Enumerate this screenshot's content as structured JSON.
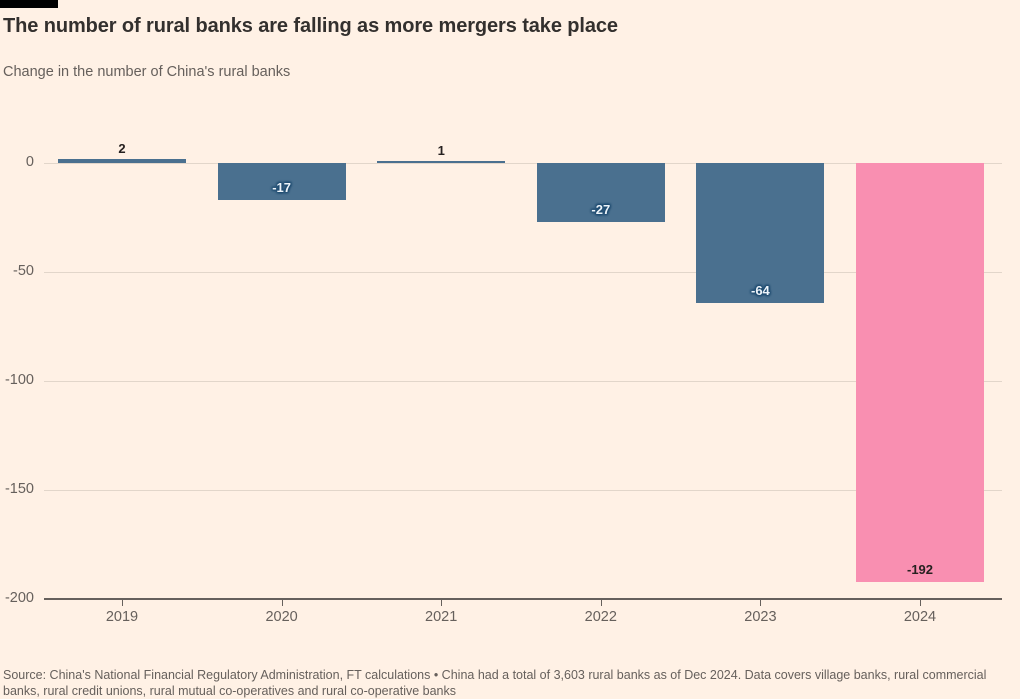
{
  "header": {
    "title": "The number of rural banks are falling as more mergers take place",
    "subtitle": "Change in the number of China's rural banks"
  },
  "footer": {
    "source": "Source: China's National Financial Regulatory Administration, FT calculations • China had a total of 3,603 rural banks as of Dec 2024. Data covers village banks, rural commercial banks, rural credit unions, rural mutual co-operatives and rural co-operative banks"
  },
  "colors": {
    "background": "#FFF1E5",
    "brand_bar": "#000000",
    "bar_default": "#4A708F",
    "bar_highlight": "#F98FB1",
    "gridline": "#E2D6CA",
    "axis": "#66605C",
    "title_text": "#33302E",
    "muted_text": "#66605C",
    "label_on_blue": "#EDF4FA",
    "label_on_pink": "#262120"
  },
  "chart_data": {
    "type": "bar",
    "title": "The number of rural banks are falling as more mergers take place",
    "subtitle": "Change in the number of China's rural banks",
    "categories": [
      "2019",
      "2020",
      "2021",
      "2022",
      "2023",
      "2024"
    ],
    "values": [
      2,
      -17,
      1,
      -27,
      -64,
      -192
    ],
    "data_labels": [
      "2",
      "-17",
      "1",
      "-27",
      "-64",
      "-192"
    ],
    "highlight_category": "2024",
    "xlabel": "",
    "ylabel": "",
    "ylim": [
      -200,
      10
    ],
    "yticks": [
      0,
      -50,
      -100,
      -150,
      -200
    ],
    "ytick_labels": [
      "0",
      "-50",
      "-100",
      "-150",
      "-200"
    ],
    "grid": true,
    "legend": false
  }
}
